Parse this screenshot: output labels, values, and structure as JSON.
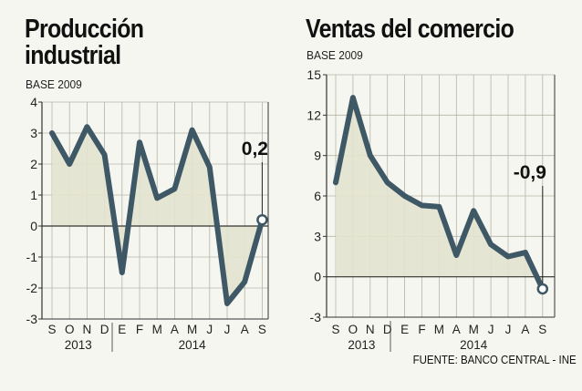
{
  "charts": {
    "left": {
      "title_line1": "Producción",
      "title_line2": "industrial",
      "subtitle": "BASE 2009"
    },
    "right": {
      "title": "Ventas del comercio",
      "subtitle": "BASE 2009"
    }
  },
  "source": "FUENTE: BANCO CENTRAL - INE",
  "colors": {
    "background": "#f6f6f1",
    "line": "#3f5866",
    "area_fill": "#e3e3cf",
    "grid": "#b4b4a4",
    "axis": "#333333"
  },
  "chart_data": [
    {
      "type": "line",
      "title": "Producción industrial",
      "subtitle": "BASE 2009",
      "categories": [
        "S",
        "O",
        "N",
        "D",
        "E",
        "F",
        "M",
        "A",
        "M",
        "J",
        "J",
        "A",
        "S"
      ],
      "year_groups": [
        {
          "label": "2013",
          "from": 0,
          "to": 3
        },
        {
          "label": "2014",
          "from": 4,
          "to": 12
        }
      ],
      "series": [
        {
          "values": [
            3.0,
            2.0,
            3.2,
            2.3,
            -1.5,
            2.7,
            0.9,
            1.2,
            3.1,
            1.9,
            -2.5,
            -1.8,
            0.2
          ]
        }
      ],
      "yticks": [
        4,
        3,
        2,
        1,
        0,
        -1,
        -2,
        -3
      ],
      "ytick_labels": [
        "4",
        "3",
        "2",
        "1",
        "0",
        "-1",
        "-2",
        "-3"
      ],
      "ylim": [
        -3,
        4
      ],
      "annotation": {
        "index": 12,
        "label": "0,2"
      },
      "grid": true
    },
    {
      "type": "line",
      "title": "Ventas del comercio",
      "subtitle": "BASE 2009",
      "categories": [
        "S",
        "O",
        "N",
        "D",
        "E",
        "F",
        "M",
        "A",
        "M",
        "J",
        "J",
        "A",
        "S"
      ],
      "year_groups": [
        {
          "label": "2013",
          "from": 0,
          "to": 3
        },
        {
          "label": "2014",
          "from": 4,
          "to": 12
        }
      ],
      "series": [
        {
          "values": [
            7.0,
            13.3,
            9.0,
            7.0,
            6.0,
            5.3,
            5.2,
            1.6,
            4.9,
            2.4,
            1.5,
            1.8,
            -0.9
          ]
        }
      ],
      "yticks": [
        15,
        12,
        9,
        6,
        3,
        0,
        -3
      ],
      "ytick_labels": [
        "15",
        "12",
        "9",
        "6",
        "3",
        "0",
        "-3"
      ],
      "ylim": [
        -3,
        15
      ],
      "annotation": {
        "index": 12,
        "label": "-0,9"
      },
      "grid": true
    }
  ]
}
